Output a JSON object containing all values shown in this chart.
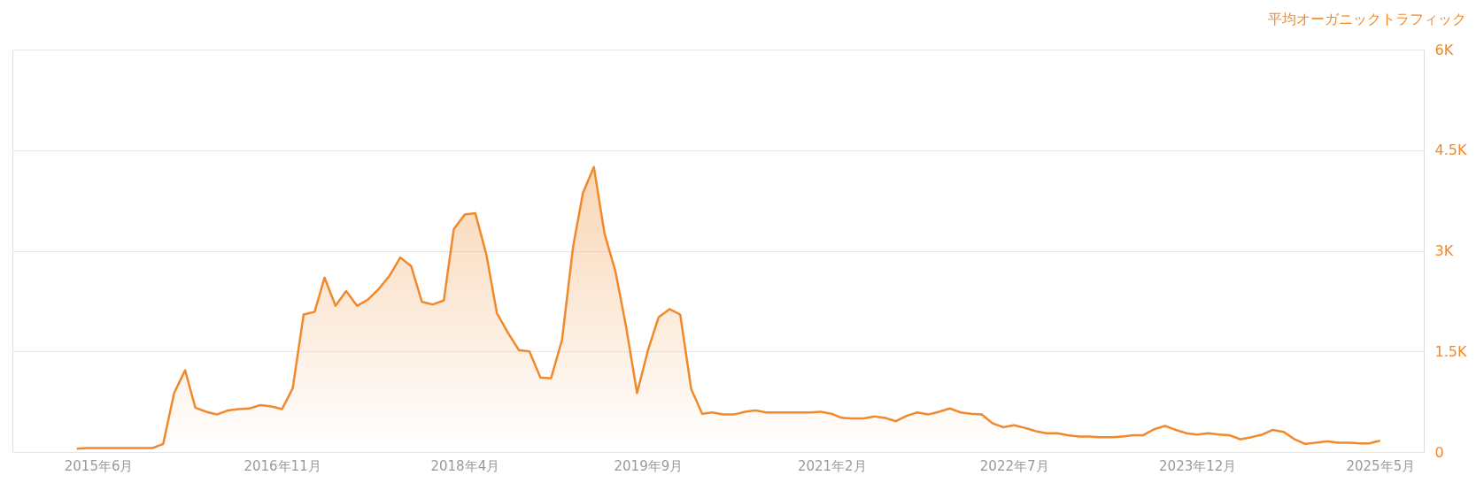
{
  "chart_data": {
    "type": "area",
    "ylabel": "平均オーガニックトラフィック",
    "x": [
      "2015-04",
      "2015-05",
      "2015-06",
      "2015-07",
      "2015-08",
      "2015-09",
      "2015-10",
      "2015-11",
      "2015-12",
      "2016-01",
      "2016-02",
      "2016-03",
      "2016-04",
      "2016-05",
      "2016-06",
      "2016-07",
      "2016-08",
      "2016-09",
      "2016-10",
      "2016-11",
      "2016-12",
      "2017-01",
      "2017-02",
      "2017-03",
      "2017-04",
      "2017-05",
      "2017-06",
      "2017-07",
      "2017-08",
      "2017-09",
      "2017-10",
      "2017-11",
      "2017-12",
      "2018-01",
      "2018-02",
      "2018-03",
      "2018-04",
      "2018-05",
      "2018-06",
      "2018-07",
      "2018-08",
      "2018-09",
      "2018-10",
      "2018-11",
      "2018-12",
      "2019-01",
      "2019-02",
      "2019-03",
      "2019-04",
      "2019-05",
      "2019-06",
      "2019-07",
      "2019-08",
      "2019-09",
      "2019-10",
      "2019-11",
      "2019-12",
      "2020-01",
      "2020-02",
      "2020-03",
      "2020-04",
      "2020-05",
      "2020-06",
      "2020-07",
      "2020-08",
      "2020-09",
      "2020-10",
      "2020-11",
      "2020-12",
      "2021-01",
      "2021-02",
      "2021-03",
      "2021-04",
      "2021-05",
      "2021-06",
      "2021-07",
      "2021-08",
      "2021-09",
      "2021-10",
      "2021-11",
      "2021-12",
      "2022-01",
      "2022-02",
      "2022-03",
      "2022-04",
      "2022-05",
      "2022-06",
      "2022-07",
      "2022-08",
      "2022-09",
      "2022-10",
      "2022-11",
      "2022-12",
      "2023-01",
      "2023-02",
      "2023-03",
      "2023-04",
      "2023-05",
      "2023-06",
      "2023-07",
      "2023-08",
      "2023-09",
      "2023-10",
      "2023-11",
      "2023-12",
      "2024-01",
      "2024-02",
      "2024-03",
      "2024-04",
      "2024-05",
      "2024-06",
      "2024-07",
      "2024-08",
      "2024-09",
      "2024-10",
      "2024-11",
      "2024-12",
      "2025-01",
      "2025-02",
      "2025-03",
      "2025-04",
      "2025-05"
    ],
    "series": [
      {
        "color": "#f0892b",
        "values": [
          50,
          60,
          60,
          60,
          60,
          60,
          60,
          60,
          120,
          880,
          1220,
          660,
          600,
          560,
          620,
          640,
          650,
          700,
          680,
          640,
          950,
          2050,
          2090,
          2600,
          2180,
          2400,
          2180,
          2270,
          2430,
          2630,
          2900,
          2770,
          2240,
          2200,
          2260,
          3320,
          3540,
          3560,
          2950,
          2070,
          1780,
          1520,
          1500,
          1110,
          1100,
          1670,
          3050,
          3860,
          4250,
          3260,
          2690,
          1870,
          880,
          1520,
          2010,
          2130,
          2050,
          940,
          570,
          590,
          560,
          560,
          600,
          620,
          590,
          590,
          590,
          590,
          590,
          600,
          570,
          510,
          500,
          500,
          530,
          510,
          460,
          540,
          590,
          560,
          600,
          650,
          590,
          570,
          560,
          430,
          370,
          400,
          360,
          310,
          280,
          280,
          250,
          230,
          230,
          220,
          220,
          230,
          250,
          250,
          340,
          390,
          330,
          280,
          260,
          280,
          260,
          250,
          190,
          220,
          260,
          330,
          300,
          190,
          120,
          140,
          160,
          140,
          140,
          130,
          130,
          170
        ]
      }
    ],
    "xlim": [
      "2014-10",
      "2025-09"
    ],
    "xticks": [
      {
        "value": "2015-06",
        "label": "2015年6月"
      },
      {
        "value": "2016-11",
        "label": "2016年11月"
      },
      {
        "value": "2018-04",
        "label": "2018年4月"
      },
      {
        "value": "2019-09",
        "label": "2019年9月"
      },
      {
        "value": "2021-02",
        "label": "2021年2月"
      },
      {
        "value": "2022-07",
        "label": "2022年7月"
      },
      {
        "value": "2023-12",
        "label": "2023年12月"
      },
      {
        "value": "2025-05",
        "label": "2025年5月"
      }
    ],
    "ylim": [
      0,
      6000
    ],
    "yticks": [
      0,
      {
        "value": 1500,
        "label": "1.5K"
      },
      {
        "value": 3000,
        "label": "3K"
      },
      {
        "value": 4500,
        "label": "4.5K"
      },
      {
        "value": 6000,
        "label": "6K"
      }
    ],
    "grid": "y",
    "marker": "none",
    "line_style": "solid"
  }
}
